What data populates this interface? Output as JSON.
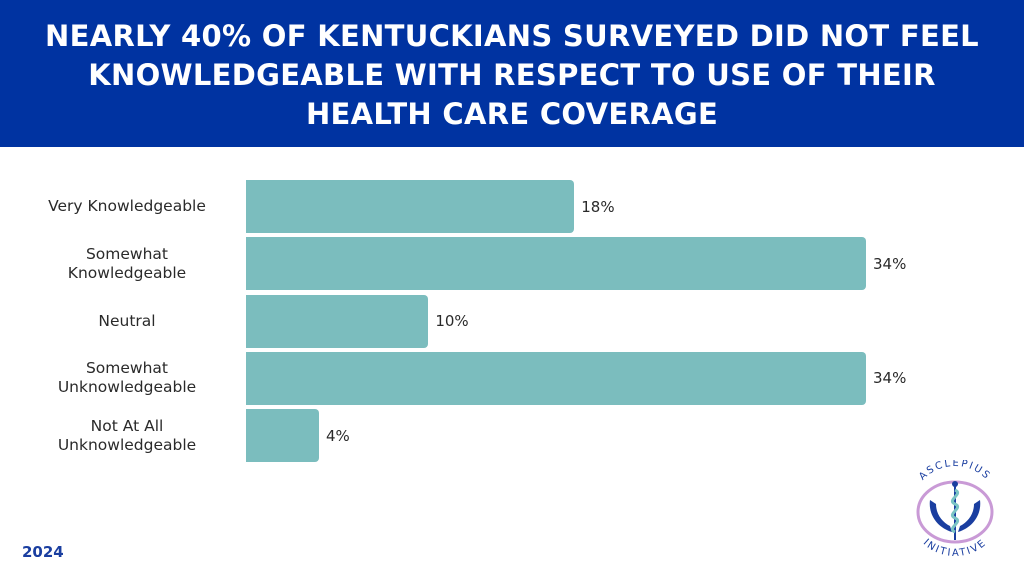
{
  "header": {
    "title": "NEARLY 40% OF KENTUCKIANS SURVEYED DID NOT FEEL KNOWLEDGEABLE WITH RESPECT TO USE OF THEIR HEALTH CARE COVERAGE"
  },
  "chart_data": {
    "type": "bar",
    "orientation": "horizontal",
    "title": "NEARLY 40% OF KENTUCKIANS SURVEYED DID NOT FEEL KNOWLEDGEABLE WITH RESPECT TO USE OF THEIR HEALTH CARE COVERAGE",
    "categories": [
      "Very Knowledgeable",
      "Somewhat Knowledgeable",
      "Neutral",
      "Somewhat Unknowledgeable",
      "Not At All Unknowledgeable"
    ],
    "category_lines": [
      [
        "Very Knowledgeable"
      ],
      [
        "Somewhat",
        "Knowledgeable"
      ],
      [
        "Neutral"
      ],
      [
        "Somewhat",
        "Unknowledgeable"
      ],
      [
        "Not At All",
        "Unknowledgeable"
      ]
    ],
    "values": [
      18,
      34,
      10,
      34,
      4
    ],
    "value_labels": [
      "18%",
      "34%",
      "10%",
      "34%",
      "4%"
    ],
    "unit": "%",
    "xlabel": "",
    "ylabel": "",
    "xlim": [
      0,
      34
    ],
    "grid": false,
    "legend": "none",
    "bar_color": "#7bbdbe"
  },
  "footer": {
    "year": "2024"
  },
  "logo": {
    "top_text": "ASCLEPIUS",
    "bottom_text": "INITIATIVE"
  },
  "colors": {
    "banner": "#0033a1",
    "bar": "#7bbdbe",
    "year_text": "#1a3ea0"
  }
}
